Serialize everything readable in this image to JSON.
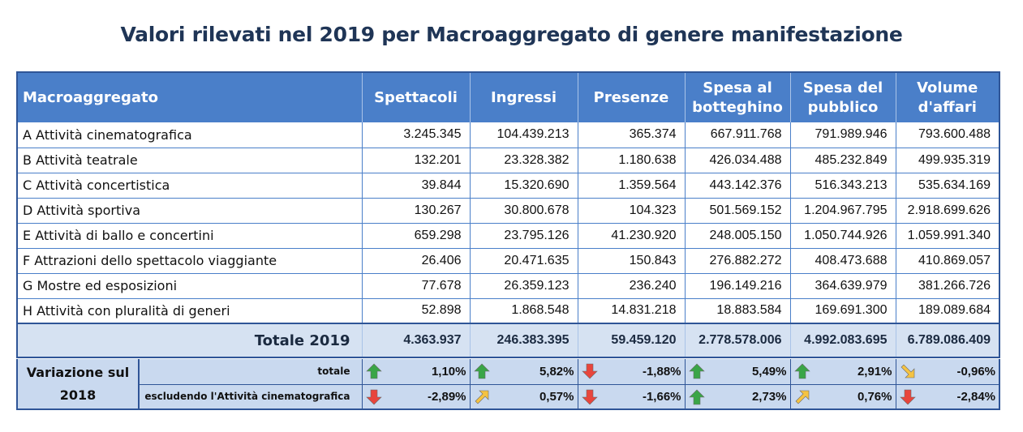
{
  "title": "Valori rilevati nel 2019 per Macroaggregato di genere manifestazione",
  "headers": {
    "macro": "Macroaggregato",
    "spettacoli": "Spettacoli",
    "ingressi": "Ingressi",
    "presenze": "Presenze",
    "spesa_botteghino_1": "Spesa al",
    "spesa_botteghino_2": "botteghino",
    "spesa_pubblico_1": "Spesa del",
    "spesa_pubblico_2": "pubblico",
    "volume_1": "Volume",
    "volume_2": "d'affari"
  },
  "rows": [
    {
      "name": "A Attività cinematografica",
      "v": [
        "3.245.345",
        "104.439.213",
        "365.374",
        "667.911.768",
        "791.989.946",
        "793.600.488"
      ]
    },
    {
      "name": "B Attività teatrale",
      "v": [
        "132.201",
        "23.328.382",
        "1.180.638",
        "426.034.488",
        "485.232.849",
        "499.935.319"
      ]
    },
    {
      "name": "C Attività concertistica",
      "v": [
        "39.844",
        "15.320.690",
        "1.359.564",
        "443.142.376",
        "516.343.213",
        "535.634.169"
      ]
    },
    {
      "name": "D Attività sportiva",
      "v": [
        "130.267",
        "30.800.678",
        "104.323",
        "501.569.152",
        "1.204.967.795",
        "2.918.699.626"
      ]
    },
    {
      "name": "E Attività di ballo e concertini",
      "v": [
        "659.298",
        "23.795.126",
        "41.230.920",
        "248.005.150",
        "1.050.744.926",
        "1.059.991.340"
      ]
    },
    {
      "name": "F Attrazioni dello spettacolo viaggiante",
      "v": [
        "26.406",
        "20.471.635",
        "150.843",
        "276.882.272",
        "408.473.688",
        "410.869.057"
      ]
    },
    {
      "name": "G Mostre ed esposizioni",
      "v": [
        "77.678",
        "26.359.123",
        "236.240",
        "196.149.216",
        "364.639.979",
        "381.266.726"
      ]
    },
    {
      "name": "H Attività con pluralità di generi",
      "v": [
        "52.898",
        "1.868.548",
        "14.831.218",
        "18.883.584",
        "169.691.300",
        "189.089.684"
      ]
    }
  ],
  "total": {
    "label": "Totale 2019",
    "v": [
      "4.363.937",
      "246.383.395",
      "59.459.120",
      "2.778.578.006",
      "4.992.083.695",
      "6.789.086.409"
    ]
  },
  "variation": {
    "label_1": "Variazione sul",
    "label_2": "2018",
    "rows": [
      {
        "label": "totale",
        "cells": [
          {
            "dir": "up",
            "value": "1,10%"
          },
          {
            "dir": "up",
            "value": "5,82%"
          },
          {
            "dir": "down",
            "value": "-1,88%"
          },
          {
            "dir": "up",
            "value": "5,49%"
          },
          {
            "dir": "up",
            "value": "2,91%"
          },
          {
            "dir": "diag-down",
            "value": "-0,96%"
          }
        ]
      },
      {
        "label": "escludendo l'Attività cinematografica",
        "cells": [
          {
            "dir": "down",
            "value": "-2,89%"
          },
          {
            "dir": "diag-up",
            "value": "0,57%"
          },
          {
            "dir": "down",
            "value": "-1,66%"
          },
          {
            "dir": "up",
            "value": "2,73%"
          },
          {
            "dir": "diag-up",
            "value": "0,76%"
          },
          {
            "dir": "down",
            "value": "-2,84%"
          }
        ]
      }
    ]
  },
  "colors": {
    "header_bg": "#4a7fc9",
    "arrow_up": "#3aa547",
    "arrow_down": "#e8453c",
    "arrow_diag": "#f5c342"
  }
}
